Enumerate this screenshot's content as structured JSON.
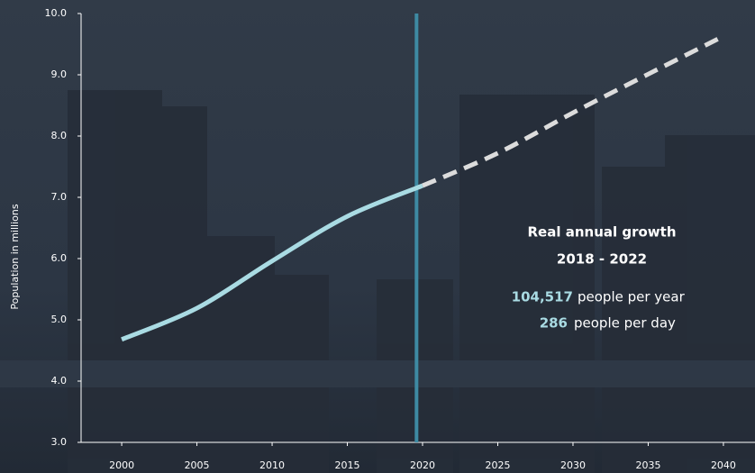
{
  "chart_data": {
    "type": "line",
    "y_axis_label": "Population in millions",
    "xlim": [
      1997.3,
      2042.1
    ],
    "ylim": [
      3,
      10
    ],
    "xticks": [
      2000,
      2005,
      2010,
      2015,
      2020,
      2025,
      2030,
      2035,
      2040
    ],
    "yticks": [
      {
        "value": 3,
        "label": "3.0"
      },
      {
        "value": 4,
        "label": "4.0"
      },
      {
        "value": 5,
        "label": "5.0"
      },
      {
        "value": 6,
        "label": "6.0"
      },
      {
        "value": 7,
        "label": "7.0"
      },
      {
        "value": 8,
        "label": "8.0"
      },
      {
        "value": 9,
        "label": "9.0"
      },
      {
        "value": 10,
        "label": "10.0"
      }
    ],
    "series": [
      {
        "color": "#a9dbe3",
        "dashed": false,
        "x": [
          2000,
          2005,
          2010,
          2015,
          2020
        ],
        "values": [
          4.68,
          5.19,
          5.96,
          6.69,
          7.19
        ]
      },
      {
        "color": "#dcdcdc",
        "dashed": true,
        "x": [
          2020,
          2025,
          2030,
          2035,
          2040
        ],
        "values": [
          7.19,
          7.72,
          8.38,
          9.01,
          9.63
        ]
      }
    ],
    "reference_line": {
      "x": 2019.6,
      "color": "#3e8aa3"
    },
    "annotation": {
      "title": "Real annual growth",
      "period": "2018 - 2022",
      "stats": [
        {
          "number": "104,517",
          "text": "people per year"
        },
        {
          "number": "286",
          "text": "people per day"
        }
      ]
    }
  }
}
